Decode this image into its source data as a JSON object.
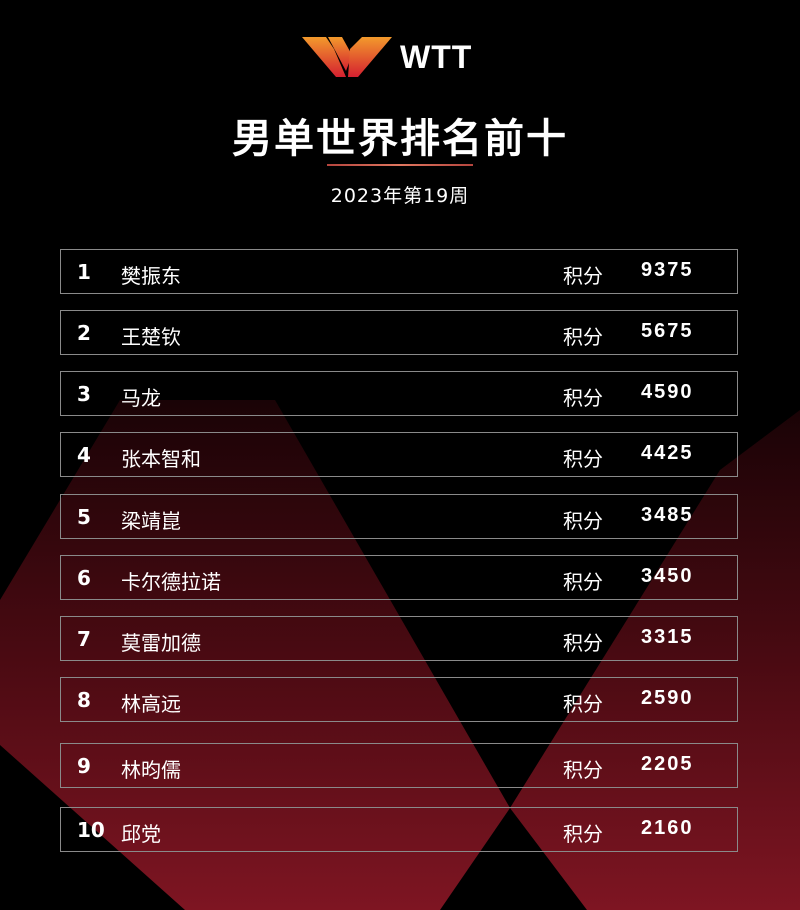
{
  "logo": {
    "text": "WTT",
    "colors": {
      "orange": "#f08a2a",
      "red": "#d8262e"
    }
  },
  "title": "男单世界排名前十",
  "subtitle": "2023年第19周",
  "points_label": "积分",
  "rows": [
    {
      "rank": "1",
      "name": "樊振东",
      "points": "9375"
    },
    {
      "rank": "2",
      "name": "王楚钦",
      "points": "5675"
    },
    {
      "rank": "3",
      "name": "马龙",
      "points": "4590"
    },
    {
      "rank": "4",
      "name": "张本智和",
      "points": "4425"
    },
    {
      "rank": "5",
      "name": "梁靖崑",
      "points": "3485"
    },
    {
      "rank": "6",
      "name": "卡尔德拉诺",
      "points": "3450"
    },
    {
      "rank": "7",
      "name": "莫雷加德",
      "points": "3315"
    },
    {
      "rank": "8",
      "name": "林高远",
      "points": "2590"
    },
    {
      "rank": "9",
      "name": "林昀儒",
      "points": "2205"
    },
    {
      "rank": "10",
      "name": "邱党",
      "points": "2160"
    }
  ]
}
